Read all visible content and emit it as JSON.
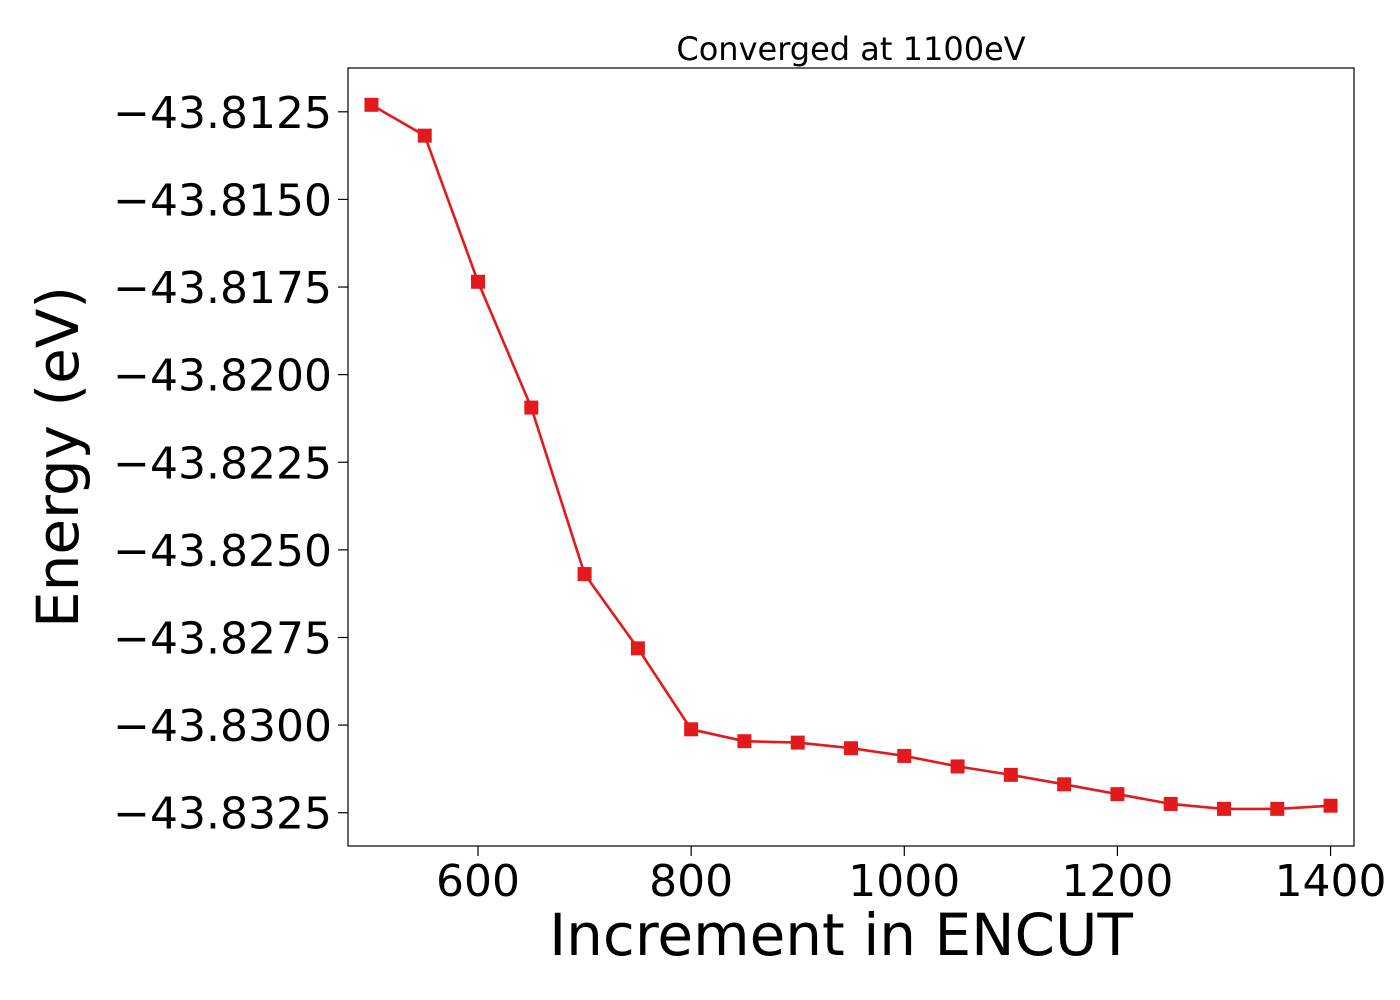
{
  "chart_data": {
    "type": "line",
    "title": "Converged at 1100eV",
    "xlabel": "Increment in ENCUT",
    "ylabel": "Energy (eV)",
    "xlim": [
      478,
      1422
    ],
    "ylim": [
      -43.83345,
      -43.81125
    ],
    "x_ticks": [
      600,
      800,
      1000,
      1200,
      1400
    ],
    "x_tick_labels": [
      "600",
      "800",
      "1000",
      "1200",
      "1400"
    ],
    "y_ticks": [
      -43.8125,
      -43.815,
      -43.8175,
      -43.82,
      -43.8225,
      -43.825,
      -43.8275,
      -43.83,
      -43.8325
    ],
    "y_tick_labels": [
      "−43.8125",
      "−43.8150",
      "−43.8175",
      "−43.8200",
      "−43.8225",
      "−43.8250",
      "−43.8275",
      "−43.8300",
      "−43.8325"
    ],
    "grid": false,
    "legend": "none",
    "marker": "square",
    "series": [
      {
        "color": "#e31a1c",
        "x": [
          500,
          550,
          600,
          650,
          700,
          750,
          800,
          850,
          900,
          950,
          1000,
          1050,
          1100,
          1150,
          1200,
          1250,
          1300,
          1350,
          1400
        ],
        "y": [
          -43.8123,
          -43.81318,
          -43.81735,
          -43.82094,
          -43.82569,
          -43.82781,
          -43.83012,
          -43.83046,
          -43.8305,
          -43.83066,
          -43.83088,
          -43.83118,
          -43.83142,
          -43.83169,
          -43.83197,
          -43.83225,
          -43.83239,
          -43.83239,
          -43.8323
        ]
      }
    ]
  }
}
